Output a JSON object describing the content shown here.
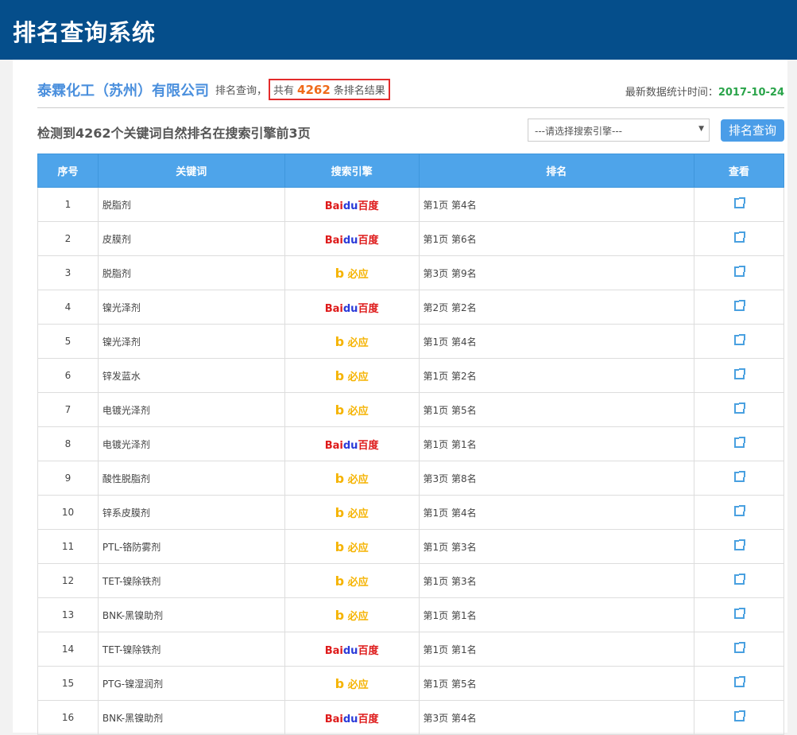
{
  "header": {
    "title": "排名查询系统"
  },
  "info": {
    "company": "泰霖化工（苏州）有限公司",
    "query_label": "排名查询，",
    "total_prefix": "共有",
    "total": "4262",
    "total_suffix": "条排名结果",
    "date_label": "最新数据统计时间：",
    "date": "2017-10-24"
  },
  "summary": "检测到4262个关键词自然排名在搜索引擎前3页",
  "filter": {
    "select_value": "---请选择搜索引擎---",
    "button": "排名查询"
  },
  "table": {
    "headers": [
      "序号",
      "关键词",
      "搜索引擎",
      "排名",
      "查看"
    ],
    "rows": [
      {
        "no": "1",
        "keyword": "脱脂剂",
        "engine": "baidu",
        "rank": "第1页 第4名"
      },
      {
        "no": "2",
        "keyword": "皮膜剂",
        "engine": "baidu",
        "rank": "第1页 第6名"
      },
      {
        "no": "3",
        "keyword": "脱脂剂",
        "engine": "bing",
        "rank": "第3页 第9名"
      },
      {
        "no": "4",
        "keyword": "镍光泽剂",
        "engine": "baidu",
        "rank": "第2页 第2名"
      },
      {
        "no": "5",
        "keyword": "镍光泽剂",
        "engine": "bing",
        "rank": "第1页 第4名"
      },
      {
        "no": "6",
        "keyword": "锌发蓝水",
        "engine": "bing",
        "rank": "第1页 第2名"
      },
      {
        "no": "7",
        "keyword": "电镀光泽剂",
        "engine": "bing",
        "rank": "第1页 第5名"
      },
      {
        "no": "8",
        "keyword": "电镀光泽剂",
        "engine": "baidu",
        "rank": "第1页 第1名"
      },
      {
        "no": "9",
        "keyword": "酸性脱脂剂",
        "engine": "bing",
        "rank": "第3页 第8名"
      },
      {
        "no": "10",
        "keyword": "锌系皮膜剂",
        "engine": "bing",
        "rank": "第1页 第4名"
      },
      {
        "no": "11",
        "keyword": "PTL-铬防雾剂",
        "engine": "bing",
        "rank": "第1页 第3名"
      },
      {
        "no": "12",
        "keyword": "TET-镍除铁剂",
        "engine": "bing",
        "rank": "第1页 第3名"
      },
      {
        "no": "13",
        "keyword": "BNK-黑镍助剂",
        "engine": "bing",
        "rank": "第1页 第1名"
      },
      {
        "no": "14",
        "keyword": "TET-镍除铁剂",
        "engine": "baidu",
        "rank": "第1页 第1名"
      },
      {
        "no": "15",
        "keyword": "PTG-镍湿润剂",
        "engine": "bing",
        "rank": "第1页 第5名"
      },
      {
        "no": "16",
        "keyword": "BNK-黑镍助剂",
        "engine": "baidu",
        "rank": "第3页 第4名"
      }
    ]
  },
  "engines": {
    "baidu": {
      "a": "Bai",
      "b": "du",
      "c": "百度"
    },
    "bing": {
      "a": "b",
      "c": "必应"
    }
  }
}
